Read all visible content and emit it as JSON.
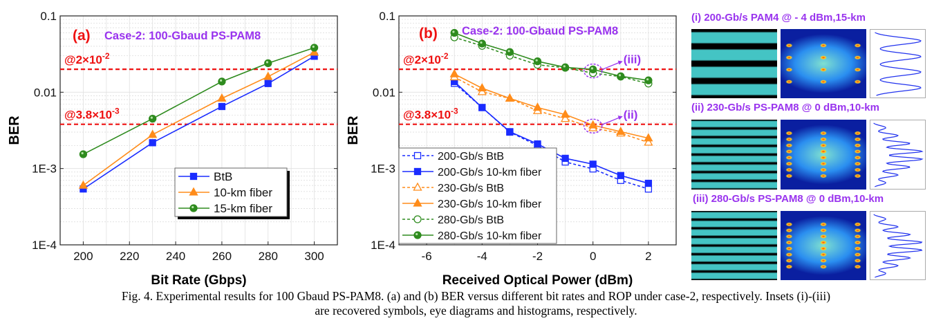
{
  "chart_data": [
    {
      "type": "line",
      "panel_label": "(a)",
      "title": "Case-2: 100-Gbaud PS-PAM8",
      "xlabel": "Bit Rate (Gbps)",
      "ylabel": "BER",
      "xlim": [
        190,
        310
      ],
      "ylim": [
        0.0001,
        0.1
      ],
      "yscale": "log",
      "xticks": [
        200,
        220,
        240,
        260,
        280,
        300
      ],
      "yticks": [
        {
          "v": 0.1,
          "label": "0.1"
        },
        {
          "v": 0.01,
          "label": "0.01"
        },
        {
          "v": 0.001,
          "label": "1E-3"
        },
        {
          "v": 0.0001,
          "label": "1E-4"
        }
      ],
      "grid": true,
      "legend": "bottom-right",
      "thresholds": [
        {
          "value": 0.02,
          "base": "@2×10",
          "exp": "-2"
        },
        {
          "value": 0.0038,
          "base": "@3.8×10",
          "exp": "-3"
        }
      ],
      "x": [
        200,
        230,
        260,
        280,
        300
      ],
      "series": [
        {
          "name": "BtB",
          "color": "#1a2cff",
          "marker": "square",
          "filled": true,
          "dashed": false,
          "values": [
            0.00054,
            0.00218,
            0.0065,
            0.013,
            0.0296
          ]
        },
        {
          "name": "10-km fiber",
          "color": "#ff8c1a",
          "marker": "triangle",
          "filled": true,
          "dashed": false,
          "values": [
            0.0006,
            0.00278,
            0.0083,
            0.016,
            0.0333
          ]
        },
        {
          "name": "15-km fiber",
          "color": "#2e8b1e",
          "marker": "circle",
          "filled": true,
          "dashed": false,
          "values": [
            0.00154,
            0.0045,
            0.0138,
            0.024,
            0.0383
          ]
        }
      ]
    },
    {
      "type": "line",
      "panel_label": "(b)",
      "title": "Case-2: 100-Gbaud PS-PAM8",
      "xlabel": "Received Optical Power (dBm)",
      "ylabel": "BER",
      "xlim": [
        -7,
        3
      ],
      "ylim": [
        0.0001,
        0.1
      ],
      "yscale": "log",
      "xticks": [
        -6,
        -4,
        -2,
        0,
        2
      ],
      "yticks": [
        {
          "v": 0.1,
          "label": "0.1"
        },
        {
          "v": 0.01,
          "label": "0.01"
        },
        {
          "v": 0.001,
          "label": "1E-3"
        },
        {
          "v": 0.0001,
          "label": "1E-4"
        }
      ],
      "grid": true,
      "legend": "bottom-left",
      "thresholds": [
        {
          "value": 0.02,
          "base": "@2×10",
          "exp": "-2"
        },
        {
          "value": 0.0038,
          "base": "@3.8×10",
          "exp": "-3"
        }
      ],
      "annotations": [
        {
          "text": "(iii)",
          "x": 0,
          "y": 0.019
        },
        {
          "text": "(ii)",
          "x": 0,
          "y": 0.0036
        }
      ],
      "x": [
        -5,
        -4,
        -3,
        -2,
        -1,
        0,
        1,
        2
      ],
      "series": [
        {
          "name": "200-Gb/s BtB",
          "color": "#1a2cff",
          "marker": "square",
          "filled": false,
          "dashed": true,
          "values": [
            0.0131,
            0.0063,
            0.003,
            0.002,
            0.00122,
            0.00099,
            0.0007,
            0.00054
          ]
        },
        {
          "name": "200-Gb/s 10-km fiber",
          "color": "#1a2cff",
          "marker": "square",
          "filled": true,
          "dashed": false,
          "values": [
            0.0138,
            0.0063,
            0.00304,
            0.0021,
            0.00136,
            0.00114,
            0.00081,
            0.00064
          ]
        },
        {
          "name": "230-Gb/s BtB",
          "color": "#ff8c1a",
          "marker": "triangle",
          "filled": false,
          "dashed": true,
          "values": [
            0.0158,
            0.0101,
            0.0083,
            0.0057,
            0.0045,
            0.0034,
            0.0029,
            0.0022
          ]
        },
        {
          "name": "230-Gb/s 10-km fiber",
          "color": "#ff8c1a",
          "marker": "triangle",
          "filled": true,
          "dashed": false,
          "values": [
            0.0173,
            0.0113,
            0.0083,
            0.0063,
            0.0051,
            0.0037,
            0.00304,
            0.0025
          ]
        },
        {
          "name": "280-Gb/s BtB",
          "color": "#2e8b1e",
          "marker": "circle",
          "filled": false,
          "dashed": true,
          "values": [
            0.0524,
            0.0405,
            0.0302,
            0.0229,
            0.0209,
            0.0178,
            0.016,
            0.013
          ]
        },
        {
          "name": "280-Gb/s 10-km fiber",
          "color": "#2e8b1e",
          "marker": "circle",
          "filled": true,
          "dashed": false,
          "values": [
            0.06,
            0.0434,
            0.0336,
            0.0254,
            0.0212,
            0.0199,
            0.0162,
            0.0143
          ]
        }
      ]
    }
  ],
  "colors": {
    "threshold": "#ee1111",
    "panel_label": "#ee1111",
    "title": "#9933ee",
    "annotation": "#9933ee"
  },
  "insets": [
    {
      "label": "(i) 200-Gb/s PAM4 @ - 4 dBm,15-km",
      "levels": 4
    },
    {
      "label": "(ii) 230-Gb/s PS-PAM8 @ 0 dBm,10-km",
      "levels": 8
    },
    {
      "label": "(iii) 280-Gb/s PS-PAM8 @ 0 dBm,10-km",
      "levels": 8
    }
  ],
  "caption": {
    "line1": "Fig. 4. Experimental results for 100 Gbaud PS-PAM8. (a) and (b) BER versus different bit rates and ROP under case-2, respectively. Insets (i)-(iii)",
    "line2": "are recovered symbols, eye diagrams and histograms, respectively."
  }
}
